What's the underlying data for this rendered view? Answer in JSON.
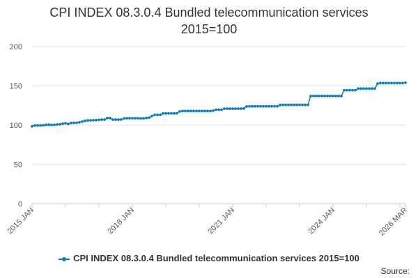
{
  "chart_data": {
    "type": "line",
    "title": "CPI INDEX 08.3.0.4 Bundled telecommunication services 2015=100",
    "title_lines": [
      "CPI INDEX 08.3.0.4 Bundled telecommunication services",
      "2015=100"
    ],
    "ylim": [
      0,
      200
    ],
    "yticks": [
      0,
      50,
      100,
      150,
      200
    ],
    "x_tick_labels": [
      {
        "label": "2015 JAN",
        "x": "2015-01"
      },
      {
        "label": "2018 JAN",
        "x": "2018-01"
      },
      {
        "label": "2021 JAN",
        "x": "2021-01"
      },
      {
        "label": "2024 JAN",
        "x": "2024-01"
      },
      {
        "label": "2026 MAR",
        "x": "2026-03"
      }
    ],
    "grid": true,
    "legend_position": "bottom",
    "series": [
      {
        "name": "CPI INDEX 08.3.0.4 Bundled telecommunication services 2015=100",
        "color": "#0b7fbd",
        "x": [
          "2015-01",
          "2015-02",
          "2015-03",
          "2015-04",
          "2015-05",
          "2015-06",
          "2015-07",
          "2015-08",
          "2015-09",
          "2015-10",
          "2015-11",
          "2015-12",
          "2016-01",
          "2016-02",
          "2016-03",
          "2016-04",
          "2016-05",
          "2016-06",
          "2016-07",
          "2016-08",
          "2016-09",
          "2016-10",
          "2016-11",
          "2016-12",
          "2017-01",
          "2017-02",
          "2017-03",
          "2017-04",
          "2017-05",
          "2017-06",
          "2017-07",
          "2017-08",
          "2017-09",
          "2017-10",
          "2017-11",
          "2017-12",
          "2018-01",
          "2018-02",
          "2018-03",
          "2018-04",
          "2018-05",
          "2018-06",
          "2018-07",
          "2018-08",
          "2018-09",
          "2018-10",
          "2018-11",
          "2018-12",
          "2019-01",
          "2019-02",
          "2019-03",
          "2019-04",
          "2019-05",
          "2019-06",
          "2019-07",
          "2019-08",
          "2019-09",
          "2019-10",
          "2019-11",
          "2019-12",
          "2020-01",
          "2020-02",
          "2020-03",
          "2020-04",
          "2020-05",
          "2020-06",
          "2020-07",
          "2020-08",
          "2020-09",
          "2020-10",
          "2020-11",
          "2020-12",
          "2021-01",
          "2021-02",
          "2021-03",
          "2021-04",
          "2021-05",
          "2021-06",
          "2021-07",
          "2021-08",
          "2021-09",
          "2021-10",
          "2021-11",
          "2021-12",
          "2022-01",
          "2022-02",
          "2022-03",
          "2022-04",
          "2022-05",
          "2022-06",
          "2022-07",
          "2022-08",
          "2022-09",
          "2022-10",
          "2022-11",
          "2022-12",
          "2023-01",
          "2023-02",
          "2023-03",
          "2023-04",
          "2023-05",
          "2023-06",
          "2023-07",
          "2023-08",
          "2023-09",
          "2023-10",
          "2023-11",
          "2023-12",
          "2024-01",
          "2024-02",
          "2024-03",
          "2024-04",
          "2024-05",
          "2024-06",
          "2024-07",
          "2024-08",
          "2024-09",
          "2024-10",
          "2024-11",
          "2024-12",
          "2025-01",
          "2025-02",
          "2025-03",
          "2025-04",
          "2025-05",
          "2025-06",
          "2025-07",
          "2025-08",
          "2025-09",
          "2025-10",
          "2025-11",
          "2025-12",
          "2026-01",
          "2026-02",
          "2026-03"
        ],
        "values": [
          98.5,
          99.5,
          99.6,
          99.6,
          99.8,
          100.3,
          100.6,
          100.2,
          100.4,
          100.8,
          101.0,
          101.7,
          102.3,
          101.5,
          102.6,
          102.9,
          103.1,
          103.5,
          104.5,
          105.5,
          106.0,
          106.1,
          106.2,
          106.4,
          106.7,
          107.0,
          107.0,
          109.0,
          109.0,
          107.0,
          107.0,
          107.0,
          107.2,
          108.5,
          108.7,
          108.7,
          108.7,
          108.7,
          108.7,
          108.5,
          108.6,
          109.0,
          109.5,
          111.5,
          113.0,
          113.0,
          113.0,
          115.0,
          115.0,
          115.0,
          115.0,
          115.0,
          115.2,
          117.5,
          118.0,
          118.0,
          118.0,
          118.0,
          118.0,
          118.0,
          118.0,
          118.0,
          118.0,
          118.0,
          118.0,
          118.5,
          119.5,
          119.5,
          119.5,
          121.0,
          121.0,
          121.0,
          121.0,
          121.0,
          121.0,
          121.0,
          121.2,
          123.8,
          124.0,
          124.0,
          124.0,
          124.0,
          124.0,
          124.0,
          124.0,
          124.0,
          124.0,
          124.0,
          124.0,
          125.5,
          125.8,
          125.8,
          125.8,
          125.8,
          125.8,
          125.8,
          125.8,
          125.8,
          125.8,
          125.8,
          137.0,
          137.0,
          137.0,
          137.0,
          137.0,
          137.0,
          137.0,
          137.0,
          137.0,
          137.0,
          137.0,
          137.0,
          144.5,
          144.5,
          144.5,
          144.5,
          144.5,
          146.5,
          146.5,
          146.5,
          146.5,
          146.5,
          146.5,
          146.5,
          153.0,
          153.5,
          153.5,
          153.5,
          153.5,
          153.5,
          153.5,
          153.5,
          153.5,
          153.5,
          154.0
        ]
      }
    ]
  },
  "legend": {
    "label": "CPI INDEX 08.3.0.4 Bundled telecommunication services 2015=100"
  },
  "footer": {
    "source_label": "Source:"
  }
}
